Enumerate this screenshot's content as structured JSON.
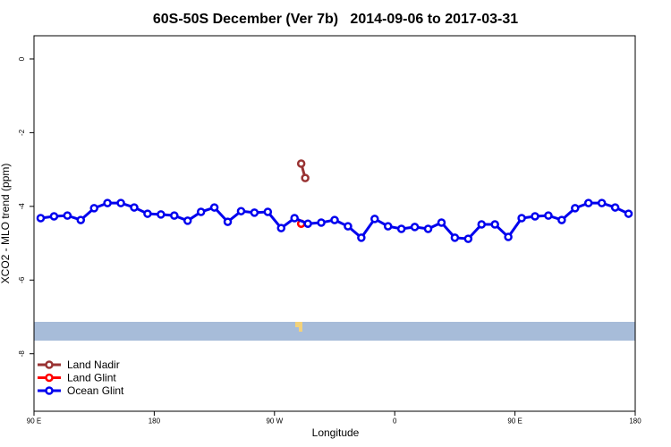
{
  "chart_data": {
    "type": "line",
    "title": "60S-50S December (Ver 7b)   2014-09-06 to 2017-03-31",
    "x_label": "Longitude",
    "y_label": "XCO2 - MLO trend (ppm)",
    "xlim": [
      90,
      540
    ],
    "xticks": [
      {
        "value": 90,
        "label": "90 E"
      },
      {
        "value": 180,
        "label": "180"
      },
      {
        "value": 270,
        "label": "90 W"
      },
      {
        "value": 360,
        "label": "0"
      },
      {
        "value": 450,
        "label": "90 E"
      },
      {
        "value": 540,
        "label": "180"
      }
    ],
    "ylim": [
      -9.56,
      0.63
    ],
    "yticks": [
      0,
      -2,
      -4,
      -6,
      -8
    ],
    "legend": "bottom-left",
    "series": [
      {
        "name": "Land Nadir",
        "color": "#993333",
        "x": [
          290,
          293
        ],
        "values": [
          -2.84,
          -3.23
        ]
      },
      {
        "name": "Land Glint",
        "color": "#ff0000",
        "x": [
          290
        ],
        "values": [
          -4.47
        ]
      },
      {
        "name": "Ocean Glint",
        "color": "#0000ee",
        "x": [
          95,
          105,
          115,
          125,
          135,
          145,
          155,
          165,
          175,
          185,
          195,
          205,
          215,
          225,
          235,
          245,
          255,
          265,
          275,
          285,
          295,
          305,
          315,
          325,
          335,
          345,
          355,
          365,
          375,
          385,
          395,
          405,
          415,
          425,
          435,
          445,
          455,
          465,
          475,
          485,
          495,
          505,
          515,
          525,
          535
        ],
        "values": [
          -4.32,
          -4.27,
          -4.25,
          -4.37,
          -4.05,
          -3.91,
          -3.91,
          -4.03,
          -4.2,
          -4.22,
          -4.25,
          -4.39,
          -4.15,
          -4.03,
          -4.42,
          -4.13,
          -4.17,
          -4.15,
          -4.59,
          -4.32,
          -4.47,
          -4.44,
          -4.37,
          -4.54,
          -4.85,
          -4.34,
          -4.54,
          -4.61,
          -4.56,
          -4.61,
          -4.44,
          -4.85,
          -4.88,
          -4.49,
          -4.49,
          -4.83,
          -4.32,
          -4.27,
          -4.25,
          -4.37,
          -4.05,
          -3.91,
          -3.91,
          -4.03,
          -4.2
        ]
      }
    ]
  }
}
